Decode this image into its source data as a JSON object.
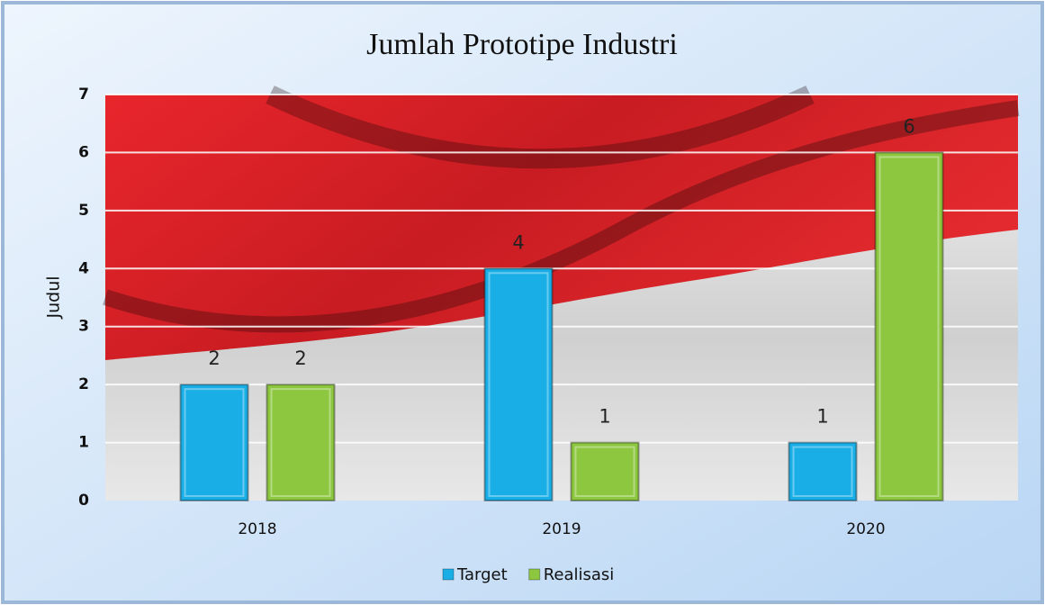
{
  "chart_data": {
    "type": "bar",
    "title": "Jumlah Prototipe Industri",
    "y_label": "Judul",
    "categories": [
      "2018",
      "2019",
      "2020"
    ],
    "series": [
      {
        "name": "Target",
        "color": "#1aaee6",
        "values": [
          2,
          4,
          1
        ]
      },
      {
        "name": "Realisasi",
        "color": "#8dc63f",
        "values": [
          2,
          1,
          6
        ]
      }
    ],
    "ylim": [
      0,
      7
    ],
    "yticks": [
      0,
      1,
      2,
      3,
      4,
      5,
      6,
      7
    ],
    "grid": true,
    "legend": "bottom"
  }
}
